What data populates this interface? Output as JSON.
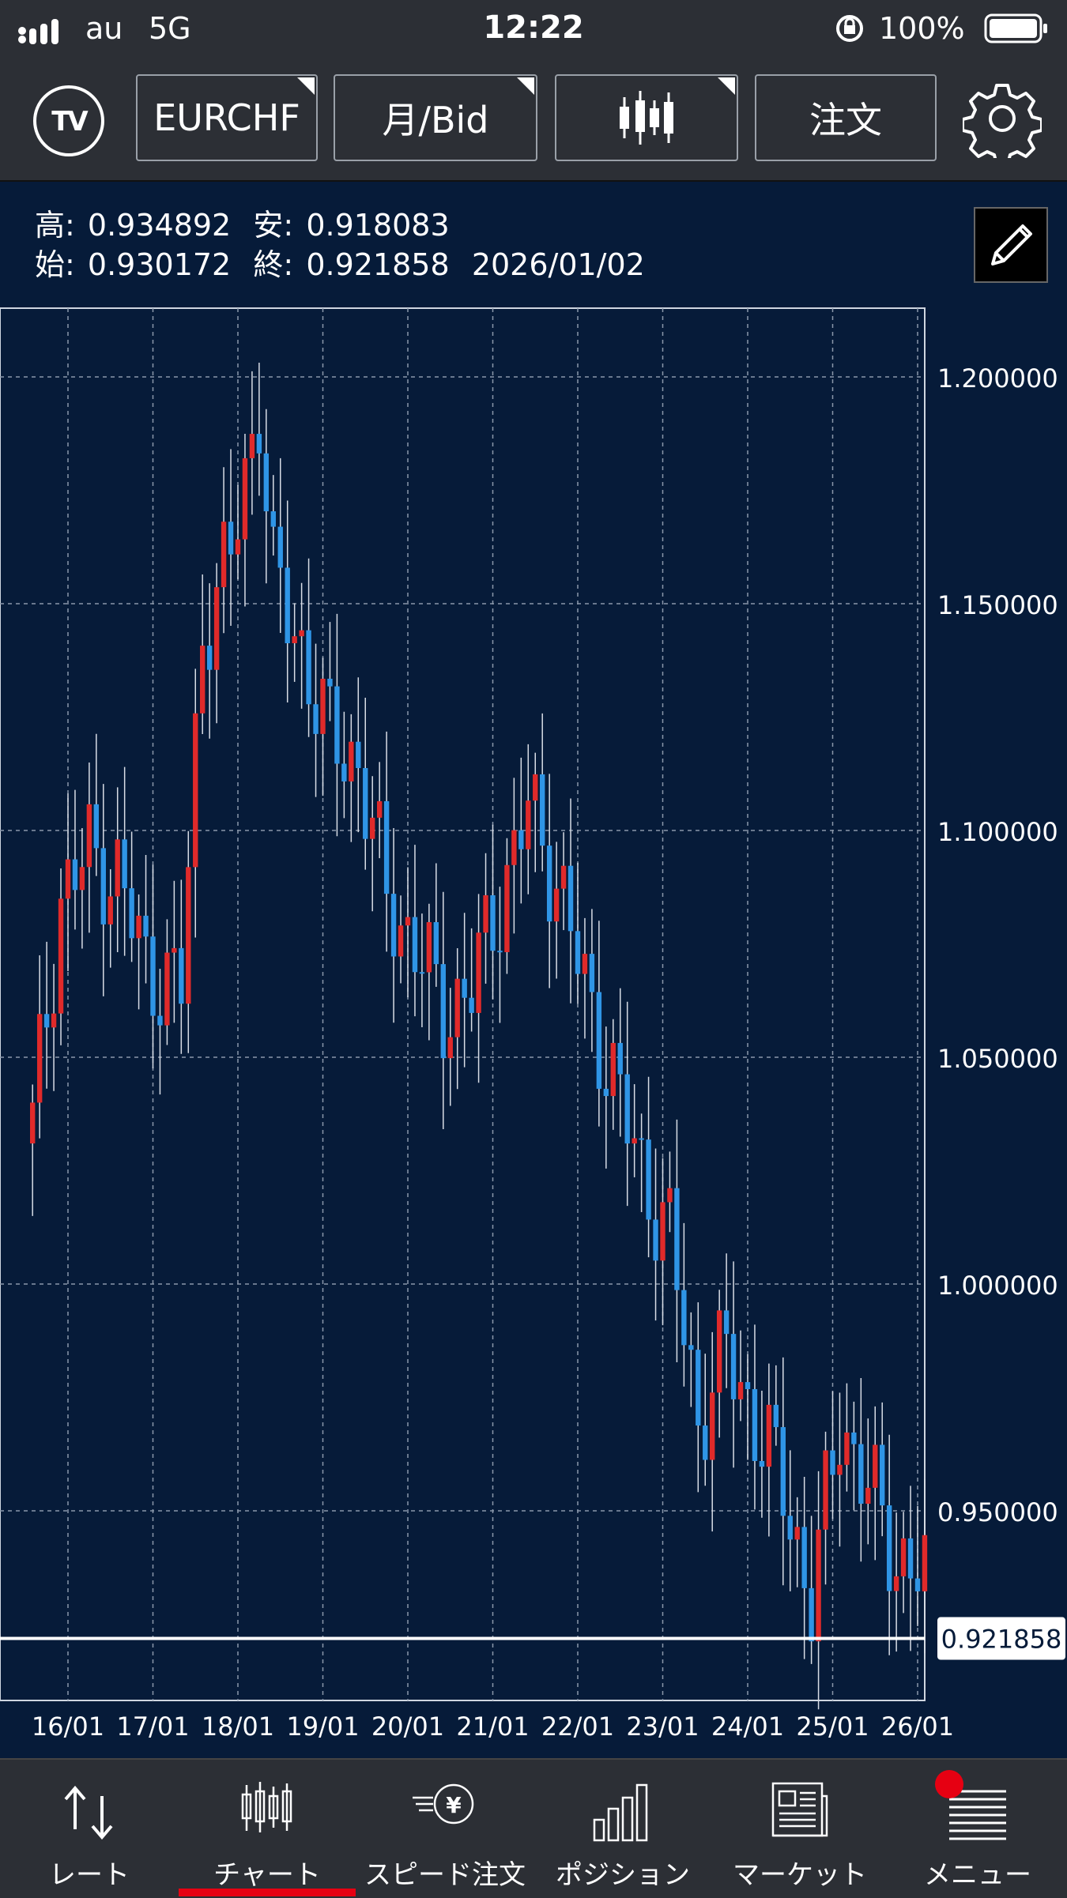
{
  "status": {
    "carrier": "au",
    "network": "5G",
    "time": "12:22",
    "battery": "100%"
  },
  "toolbar": {
    "symbol": "EURCHF",
    "timeframe": "月/Bid",
    "chart_type_icon": "candlestick-icon",
    "order": "注文",
    "settings_icon": "gear-icon",
    "logo_icon": "tradingview-logo-icon"
  },
  "ohlc": {
    "high_label": "高:",
    "high": "0.934892",
    "low_label": "安:",
    "low": "0.918083",
    "open_label": "始:",
    "open": "0.930172",
    "close_label": "終:",
    "close": "0.921858",
    "date": "2026/01/02"
  },
  "colors": {
    "background": "#061b39",
    "up": "#e02a2a",
    "down": "#2f95e6",
    "grid": "#8a97aa",
    "toolbar": "#2c2f35"
  },
  "chart_data": {
    "type": "candlestick",
    "symbol": "EURCHF",
    "period": "monthly",
    "y_ticks": [
      1.2,
      1.15,
      1.1,
      1.05,
      1.0,
      0.95
    ],
    "y_tick_labels": [
      "1.200000",
      "1.150000",
      "1.100000",
      "1.050000",
      "1.000000",
      "0.950000"
    ],
    "ylim": [
      0.906,
      1.215
    ],
    "x_tick_labels": [
      "16/01",
      "17/01",
      "18/01",
      "19/01",
      "20/01",
      "21/01",
      "22/01",
      "23/01",
      "24/01",
      "25/01",
      "26/01"
    ],
    "current_price": 0.921858,
    "current_price_label": "0.921858",
    "grid": true,
    "candles_per_year": 12,
    "first_candle_offset": -5,
    "close_path": [
      [
        0,
        1.035
      ],
      [
        4,
        1.085
      ],
      [
        8,
        1.095
      ],
      [
        12,
        1.09
      ],
      [
        16,
        1.07
      ],
      [
        21,
        1.065
      ],
      [
        24,
        1.145
      ],
      [
        28,
        1.16
      ],
      [
        32,
        1.195
      ],
      [
        34,
        1.155
      ],
      [
        38,
        1.14
      ],
      [
        42,
        1.12
      ],
      [
        46,
        1.115
      ],
      [
        50,
        1.085
      ],
      [
        54,
        1.075
      ],
      [
        58,
        1.06
      ],
      [
        62,
        1.065
      ],
      [
        66,
        1.085
      ],
      [
        70,
        1.105
      ],
      [
        74,
        1.09
      ],
      [
        78,
        1.065
      ],
      [
        82,
        1.045
      ],
      [
        86,
        1.025
      ],
      [
        90,
        1.01
      ],
      [
        94,
        0.97
      ],
      [
        98,
        0.985
      ],
      [
        102,
        0.97
      ],
      [
        106,
        0.955
      ],
      [
        110,
        0.93
      ],
      [
        114,
        0.97
      ],
      [
        118,
        0.955
      ],
      [
        122,
        0.94
      ],
      [
        126,
        0.935
      ],
      [
        130,
        0.93
      ],
      [
        134,
        0.9219
      ]
    ]
  },
  "tabs": [
    {
      "label": "レート",
      "icon": "rate-arrows-icon"
    },
    {
      "label": "チャート",
      "icon": "chart-candles-icon"
    },
    {
      "label": "スピード注文",
      "icon": "speed-order-yen-icon"
    },
    {
      "label": "ポジション",
      "icon": "position-bars-icon"
    },
    {
      "label": "マーケット",
      "icon": "market-news-icon"
    },
    {
      "label": "メニュー",
      "icon": "menu-list-icon"
    }
  ]
}
